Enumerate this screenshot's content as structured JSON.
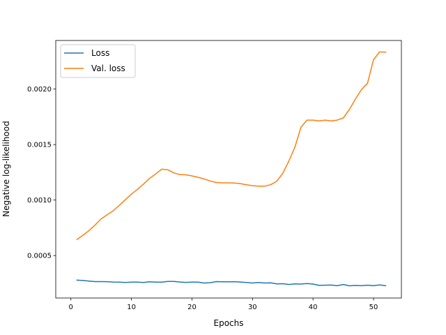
{
  "chart_data": {
    "type": "line",
    "title": "",
    "xlabel": "Epochs",
    "ylabel": "Negative log-likelihood",
    "xlim": [
      -2.5,
      54.6
    ],
    "ylim": [
      0.000117,
      0.002438
    ],
    "xticks": [
      0,
      10,
      20,
      30,
      40,
      50
    ],
    "xtick_labels": [
      "0",
      "10",
      "20",
      "30",
      "40",
      "50"
    ],
    "yticks": [
      0.0005,
      0.001,
      0.0015,
      0.002
    ],
    "ytick_labels": [
      "0.0005",
      "0.0010",
      "0.0015",
      "0.0020"
    ],
    "grid": false,
    "legend_position": "upper-left",
    "x": [
      1,
      2,
      3,
      4,
      5,
      6,
      7,
      8,
      9,
      10,
      11,
      12,
      13,
      14,
      15,
      16,
      17,
      18,
      19,
      20,
      21,
      22,
      23,
      24,
      25,
      26,
      27,
      28,
      29,
      30,
      31,
      32,
      33,
      34,
      35,
      36,
      37,
      38,
      39,
      40,
      41,
      42,
      43,
      44,
      45,
      46,
      47,
      48,
      49,
      50,
      51,
      52
    ],
    "series": [
      {
        "name": "Loss",
        "color": "#1f77b4",
        "values": [
          0.000278,
          0.000275,
          0.00027,
          0.000265,
          0.000265,
          0.000264,
          0.000261,
          0.00026,
          0.000257,
          0.00026,
          0.00026,
          0.000257,
          0.000263,
          0.00026,
          0.00026,
          0.000267,
          0.000267,
          0.000261,
          0.000258,
          0.00026,
          0.00026,
          0.000252,
          0.000255,
          0.000265,
          0.000263,
          0.000263,
          0.000264,
          0.000261,
          0.000257,
          0.000252,
          0.000257,
          0.000252,
          0.000254,
          0.000244,
          0.000246,
          0.000239,
          0.000244,
          0.000243,
          0.000247,
          0.000243,
          0.000231,
          0.000233,
          0.000234,
          0.000228,
          0.000239,
          0.000227,
          0.00023,
          0.000228,
          0.000233,
          0.000228,
          0.000235,
          0.000228
        ]
      },
      {
        "name": "Val. loss",
        "color": "#ff7f0e",
        "values": [
          0.000645,
          0.000683,
          0.000725,
          0.000775,
          0.00083,
          0.000868,
          0.000903,
          0.000952,
          0.001003,
          0.001053,
          0.001097,
          0.001144,
          0.001195,
          0.001235,
          0.001278,
          0.001273,
          0.001245,
          0.00123,
          0.001227,
          0.001218,
          0.001205,
          0.00119,
          0.001172,
          0.001158,
          0.001155,
          0.001155,
          0.001153,
          0.001148,
          0.001138,
          0.00113,
          0.001125,
          0.001125,
          0.001138,
          0.00117,
          0.00124,
          0.00135,
          0.001475,
          0.001655,
          0.00172,
          0.00172,
          0.001713,
          0.00172,
          0.001713,
          0.00172,
          0.00174,
          0.001815,
          0.00191,
          0.001995,
          0.002053,
          0.002265,
          0.002335,
          0.002333
        ]
      }
    ]
  }
}
